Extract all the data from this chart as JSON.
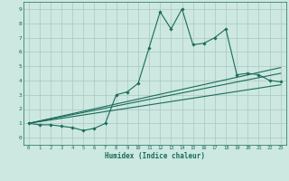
{
  "xlabel": "Humidex (Indice chaleur)",
  "bg_color": "#cce8e0",
  "grid_color": "#aac8c0",
  "line_color": "#1a6b5a",
  "xlim": [
    -0.5,
    23.5
  ],
  "ylim": [
    -0.5,
    9.5
  ],
  "xticks": [
    0,
    1,
    2,
    3,
    4,
    5,
    6,
    7,
    8,
    9,
    10,
    11,
    12,
    13,
    14,
    15,
    16,
    17,
    18,
    19,
    20,
    21,
    22,
    23
  ],
  "yticks": [
    0,
    1,
    2,
    3,
    4,
    5,
    6,
    7,
    8,
    9
  ],
  "main_x": [
    0,
    1,
    2,
    3,
    4,
    5,
    6,
    7,
    8,
    9,
    10,
    11,
    12,
    13,
    14,
    15,
    16,
    17,
    18,
    19,
    20,
    21,
    22,
    23
  ],
  "main_y": [
    1.0,
    0.9,
    0.9,
    0.8,
    0.7,
    0.5,
    0.65,
    1.0,
    3.0,
    3.2,
    3.8,
    6.3,
    8.8,
    7.6,
    9.0,
    6.5,
    6.6,
    7.0,
    7.6,
    4.4,
    4.5,
    4.4,
    4.0,
    3.9
  ],
  "line1_x": [
    0,
    23
  ],
  "line1_y": [
    1.0,
    4.5
  ],
  "line2_x": [
    0,
    23
  ],
  "line2_y": [
    1.0,
    3.7
  ],
  "line3_x": [
    0,
    23
  ],
  "line3_y": [
    1.0,
    4.9
  ]
}
